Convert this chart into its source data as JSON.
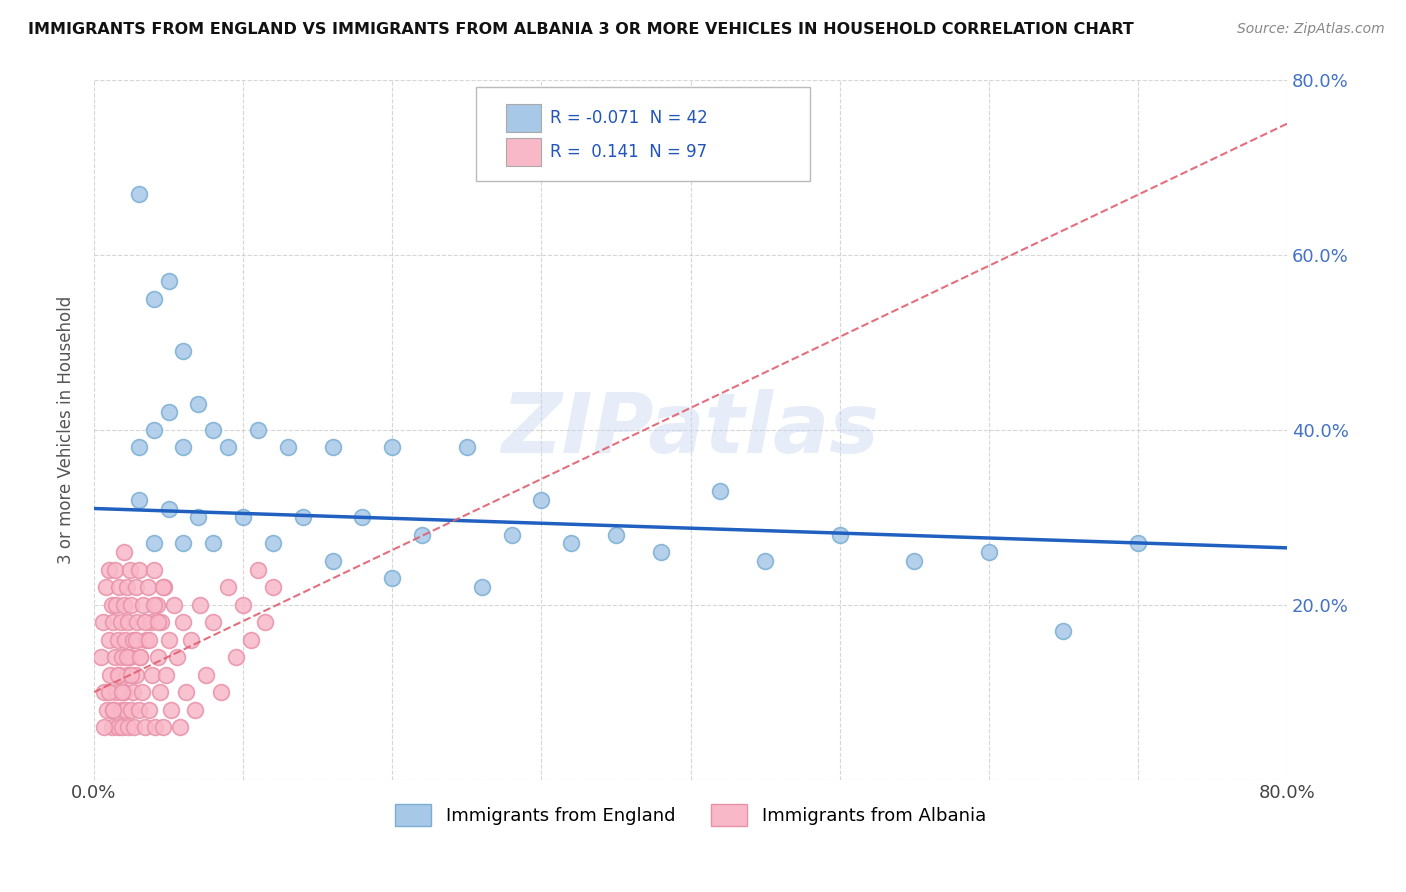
{
  "title": "IMMIGRANTS FROM ENGLAND VS IMMIGRANTS FROM ALBANIA 3 OR MORE VEHICLES IN HOUSEHOLD CORRELATION CHART",
  "source": "Source: ZipAtlas.com",
  "ylabel": "3 or more Vehicles in Household",
  "xlim": [
    0.0,
    0.8
  ],
  "ylim": [
    0.0,
    0.8
  ],
  "england_color": "#a8c8e8",
  "england_edge": "#7aaed4",
  "albania_color": "#f9b8c8",
  "albania_edge": "#e890a8",
  "england_R": -0.071,
  "england_N": 42,
  "albania_R": 0.141,
  "albania_N": 97,
  "trend_england_color": "#2060c0",
  "trend_albania_color": "#e06070",
  "watermark": "ZIPatlas",
  "legend_england": "Immigrants from England",
  "legend_albania": "Immigrants from Albania",
  "england_x": [
    0.03,
    0.04,
    0.05,
    0.06,
    0.07,
    0.03,
    0.04,
    0.05,
    0.06,
    0.08,
    0.09,
    0.11,
    0.13,
    0.16,
    0.2,
    0.25,
    0.3,
    0.03,
    0.05,
    0.07,
    0.1,
    0.14,
    0.18,
    0.22,
    0.28,
    0.35,
    0.42,
    0.5,
    0.6,
    0.7,
    0.04,
    0.06,
    0.08,
    0.12,
    0.16,
    0.2,
    0.26,
    0.32,
    0.38,
    0.45,
    0.55,
    0.65
  ],
  "england_y": [
    0.67,
    0.55,
    0.57,
    0.49,
    0.43,
    0.38,
    0.4,
    0.42,
    0.38,
    0.4,
    0.38,
    0.4,
    0.38,
    0.38,
    0.38,
    0.38,
    0.32,
    0.32,
    0.31,
    0.3,
    0.3,
    0.3,
    0.3,
    0.28,
    0.28,
    0.28,
    0.33,
    0.28,
    0.26,
    0.27,
    0.27,
    0.27,
    0.27,
    0.27,
    0.25,
    0.23,
    0.22,
    0.27,
    0.26,
    0.25,
    0.25,
    0.17
  ],
  "albania_x": [
    0.005,
    0.006,
    0.007,
    0.008,
    0.009,
    0.01,
    0.01,
    0.011,
    0.012,
    0.012,
    0.013,
    0.013,
    0.014,
    0.014,
    0.015,
    0.015,
    0.016,
    0.016,
    0.017,
    0.017,
    0.018,
    0.018,
    0.019,
    0.019,
    0.02,
    0.02,
    0.02,
    0.021,
    0.021,
    0.022,
    0.022,
    0.023,
    0.023,
    0.024,
    0.024,
    0.025,
    0.025,
    0.026,
    0.026,
    0.027,
    0.028,
    0.028,
    0.029,
    0.03,
    0.03,
    0.031,
    0.032,
    0.033,
    0.034,
    0.035,
    0.036,
    0.037,
    0.038,
    0.039,
    0.04,
    0.041,
    0.042,
    0.043,
    0.044,
    0.045,
    0.046,
    0.047,
    0.048,
    0.05,
    0.052,
    0.054,
    0.056,
    0.058,
    0.06,
    0.062,
    0.065,
    0.068,
    0.071,
    0.075,
    0.08,
    0.085,
    0.09,
    0.095,
    0.1,
    0.105,
    0.11,
    0.115,
    0.12,
    0.007,
    0.01,
    0.013,
    0.016,
    0.019,
    0.022,
    0.025,
    0.028,
    0.031,
    0.034,
    0.037,
    0.04,
    0.043,
    0.046
  ],
  "albania_y": [
    0.14,
    0.18,
    0.1,
    0.22,
    0.08,
    0.16,
    0.24,
    0.12,
    0.2,
    0.06,
    0.18,
    0.08,
    0.14,
    0.24,
    0.1,
    0.2,
    0.06,
    0.16,
    0.12,
    0.22,
    0.08,
    0.18,
    0.14,
    0.06,
    0.2,
    0.1,
    0.26,
    0.16,
    0.08,
    0.22,
    0.12,
    0.18,
    0.06,
    0.24,
    0.14,
    0.08,
    0.2,
    0.1,
    0.16,
    0.06,
    0.22,
    0.12,
    0.18,
    0.08,
    0.24,
    0.14,
    0.1,
    0.2,
    0.06,
    0.16,
    0.22,
    0.08,
    0.18,
    0.12,
    0.24,
    0.06,
    0.2,
    0.14,
    0.1,
    0.18,
    0.06,
    0.22,
    0.12,
    0.16,
    0.08,
    0.2,
    0.14,
    0.06,
    0.18,
    0.1,
    0.16,
    0.08,
    0.2,
    0.12,
    0.18,
    0.1,
    0.22,
    0.14,
    0.2,
    0.16,
    0.24,
    0.18,
    0.22,
    0.06,
    0.1,
    0.08,
    0.12,
    0.1,
    0.14,
    0.12,
    0.16,
    0.14,
    0.18,
    0.16,
    0.2,
    0.18,
    0.22
  ]
}
